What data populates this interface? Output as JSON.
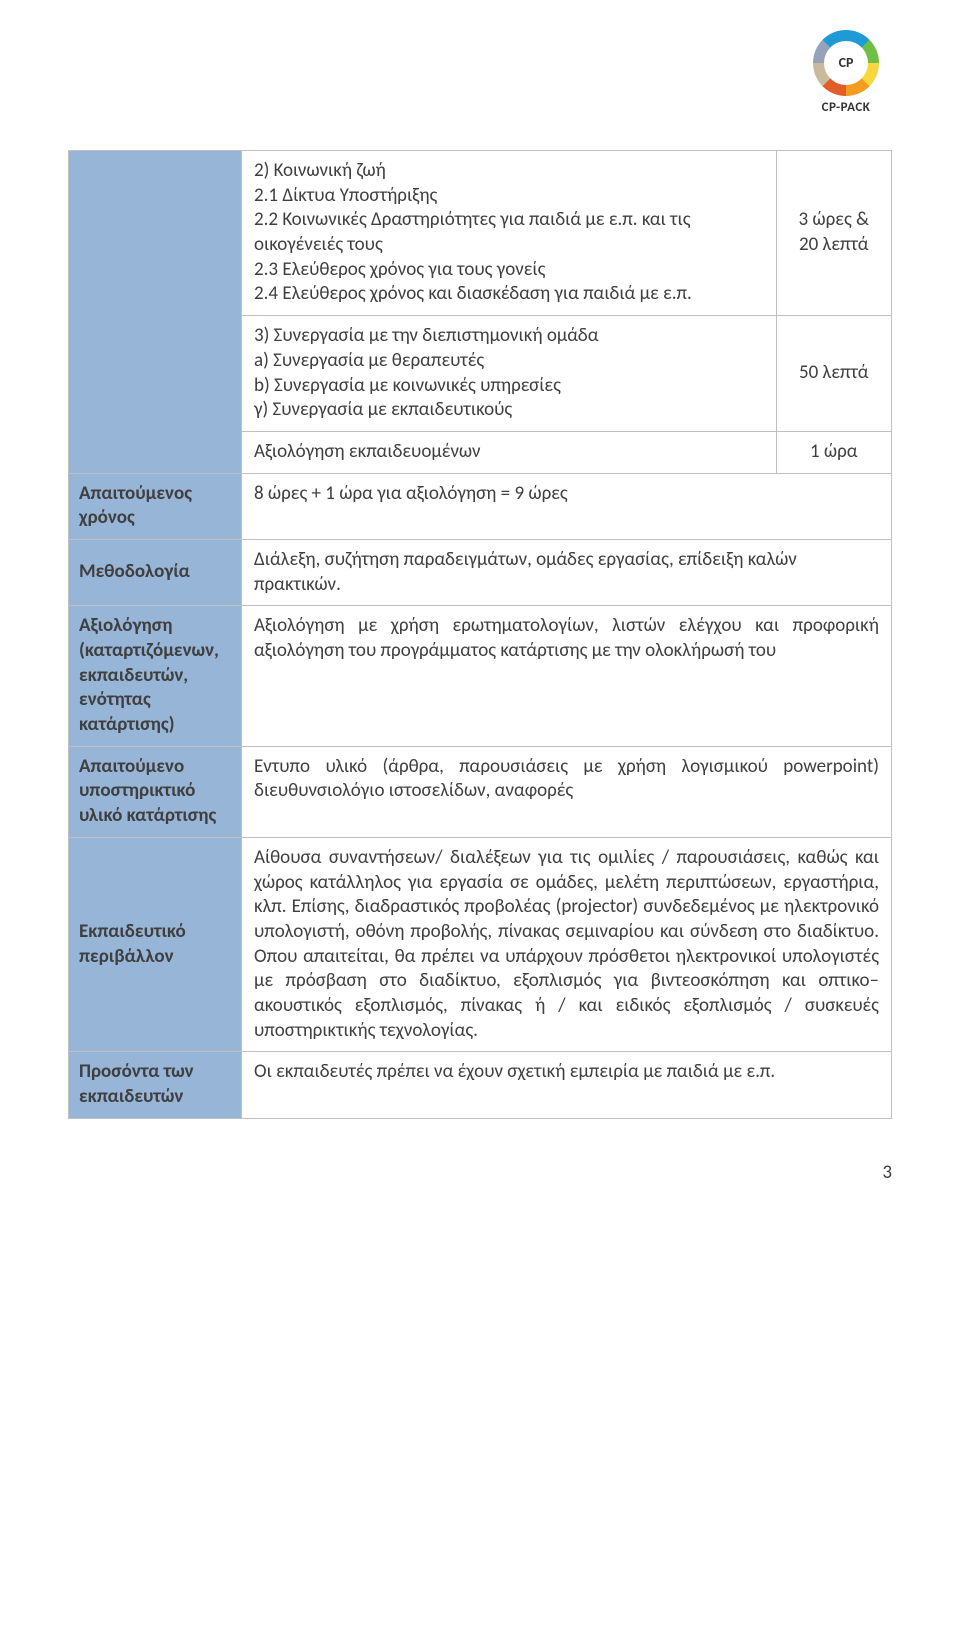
{
  "logo": {
    "short": "CP",
    "brand": "CP-PACK"
  },
  "colors": {
    "header_bg": "#97b5d6",
    "border": "#c0c0c0",
    "text": "#3f3f3f"
  },
  "top_section": {
    "rows": [
      {
        "content_lines": [
          "2) Κοινωνική ζωή",
          "2.1 Δίκτυα Υποστήριξης",
          "2.2 Κοινωνικές Δραστηριότητες για παιδιά με ε.π. και τις οικογένειές τους",
          "2.3 Ελεύθερος χρόνος για τους γονείς",
          "2.4 Ελεύθερος χρόνος και διασκέδαση για παιδιά με ε.π."
        ],
        "time": "3 ώρες & 20 λεπτά"
      },
      {
        "content_lines": [
          "3) Συνεργασία με την διεπιστημονική ομάδα",
          "a) Συνεργασία με θεραπευτές",
          "b) Συνεργασία με κοινωνικές υπηρεσίες",
          "γ) Συνεργασία με εκπαιδευτικούς"
        ],
        "time": "50 λεπτά"
      },
      {
        "content_lines": [
          "Αξιολόγηση εκπαιδευομένων"
        ],
        "time": "1 ώρα"
      }
    ]
  },
  "rows": [
    {
      "header": "Απαιτούμενος χρόνος",
      "body": "8 ώρες + 1 ώρα για αξιολόγηση = 9 ώρες"
    },
    {
      "header": "Μεθοδολογία",
      "body": "Διάλεξη, συζήτηση παραδειγμάτων, ομάδες εργασίας, επίδειξη καλών πρακτικών."
    },
    {
      "header": "Αξιολόγηση (καταρτιζόμενων, εκπαιδευτών, ενότητας κατάρτισης)",
      "body": "Αξιολόγηση με χρήση ερωτηματολογίων, λιστών ελέγχου και προφορική αξιολόγηση του προγράμματος κατάρτισης με την ολοκλήρωσή του",
      "justify": true
    },
    {
      "header": "Απαιτούμενο υποστηρικτικό υλικό κατάρτισης",
      "body": "Εντυπο υλικό (άρθρα, παρουσιάσεις με χρήση λογισμικού powerpoint) διευθυνσιολόγιο ιστοσελίδων, αναφορές",
      "justify": true
    },
    {
      "header": "Εκπαιδευτικό περιβάλλον",
      "body": "Αίθουσα συναντήσεων/ διαλέξεων για τις ομιλίες / παρουσιάσεις, καθώς και χώρος κατάλληλος για εργασία σε ομάδες, μελέτη περιπτώσεων, εργαστήρια, κλπ. Επίσης, διαδραστικός προβολέας (projector) συνδεδεμένος με ηλεκτρονικό υπολογιστή, οθόνη προβολής, πίνακας σεμιναρίου και σύνδεση στο διαδίκτυο. Οπου απαιτείται, θα πρέπει να υπάρχουν πρόσθετοι ηλεκτρονικοί υπολογιστές με πρόσβαση στο διαδίκτυο, εξοπλισμός για βιντεοσκόπηση και οπτικο–ακουστικός εξοπλισμός, πίνακας ή / και ειδικός εξοπλισμός / συσκευές υποστηρικτικής τεχνολογίας.",
      "justify": true
    },
    {
      "header": "Προσόντα των εκπαιδευτών",
      "body": "Οι εκπαιδευτές πρέπει να έχουν σχετική εμπειρία με παιδιά με ε.π."
    }
  ],
  "page_number": "3"
}
